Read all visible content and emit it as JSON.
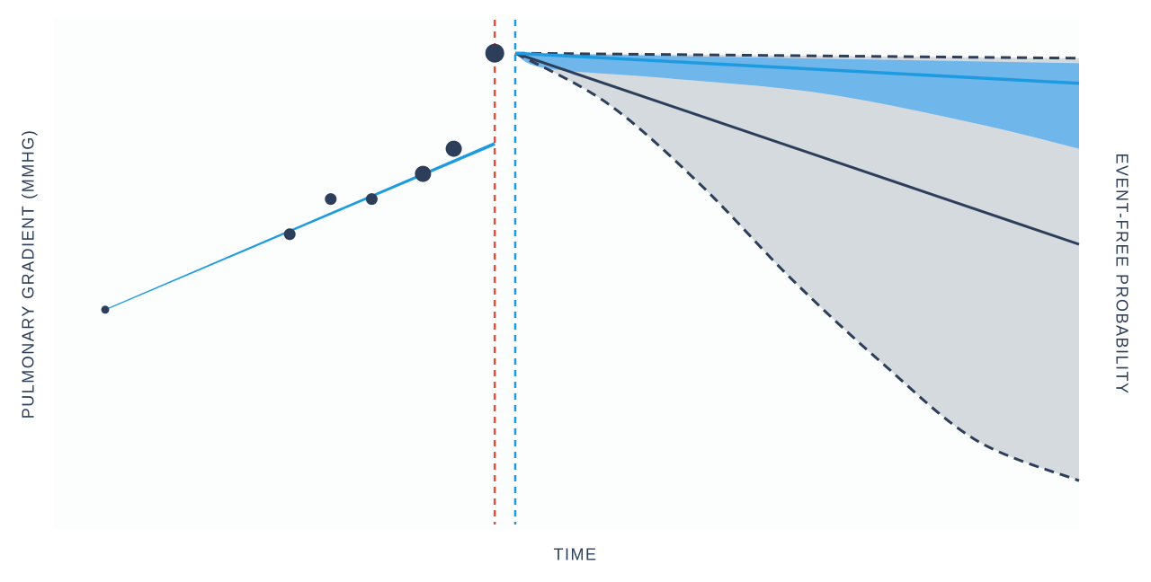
{
  "chart_data": {
    "type": "line",
    "xlabel": "TIME",
    "ylabel_left": "PULMONARY GRADIENT (MMHG)",
    "ylabel_right": "EVENT-FREE PROBABILITY",
    "tick_labels": "none",
    "grid": false,
    "legend": "none",
    "x_range": [
      0,
      1
    ],
    "y_range": [
      0,
      1
    ],
    "history": {
      "observations": [
        {
          "x": 0.05,
          "y": 0.42,
          "weight": 1
        },
        {
          "x": 0.23,
          "y": 0.57,
          "weight": 2
        },
        {
          "x": 0.27,
          "y": 0.64,
          "weight": 2
        },
        {
          "x": 0.31,
          "y": 0.64,
          "weight": 2
        },
        {
          "x": 0.36,
          "y": 0.69,
          "weight": 3
        },
        {
          "x": 0.39,
          "y": 0.74,
          "weight": 3
        }
      ],
      "trend": [
        {
          "x": 0.05,
          "y": 0.42
        },
        {
          "x": 0.43,
          "y": 0.75
        }
      ]
    },
    "vertical_markers": [
      {
        "x": 0.43,
        "color": "#e74c3c"
      },
      {
        "x": 0.45,
        "color": "#1e9be0"
      }
    ],
    "prediction_start": {
      "x": 0.43,
      "y": 0.93
    },
    "series": [
      {
        "color": "#2c3e5a",
        "mean": [
          [
            0.45,
            0.93
          ],
          [
            1.0,
            0.55
          ]
        ],
        "upper": [
          [
            0.45,
            0.93
          ],
          [
            1.0,
            0.92
          ]
        ],
        "lower": [
          [
            0.45,
            0.93
          ],
          [
            0.54,
            0.83
          ],
          [
            0.63,
            0.67
          ],
          [
            0.72,
            0.48
          ],
          [
            0.81,
            0.31
          ],
          [
            0.9,
            0.16
          ],
          [
            1.0,
            0.08
          ]
        ]
      },
      {
        "color": "#1e9be0",
        "mean": [
          [
            0.45,
            0.93
          ],
          [
            1.0,
            0.87
          ]
        ],
        "upper": [
          [
            0.45,
            0.93
          ],
          [
            1.0,
            0.91
          ]
        ],
        "lower": [
          [
            0.45,
            0.93
          ],
          [
            0.48,
            0.9
          ],
          [
            0.6,
            0.88
          ],
          [
            0.75,
            0.85
          ],
          [
            0.9,
            0.79
          ],
          [
            1.0,
            0.74
          ]
        ]
      }
    ],
    "colors": {
      "background": "#fcfdfd",
      "dots": "#2c3e5a",
      "grey_band": "#d5dade",
      "blue_band": "#6fb6ea"
    }
  }
}
